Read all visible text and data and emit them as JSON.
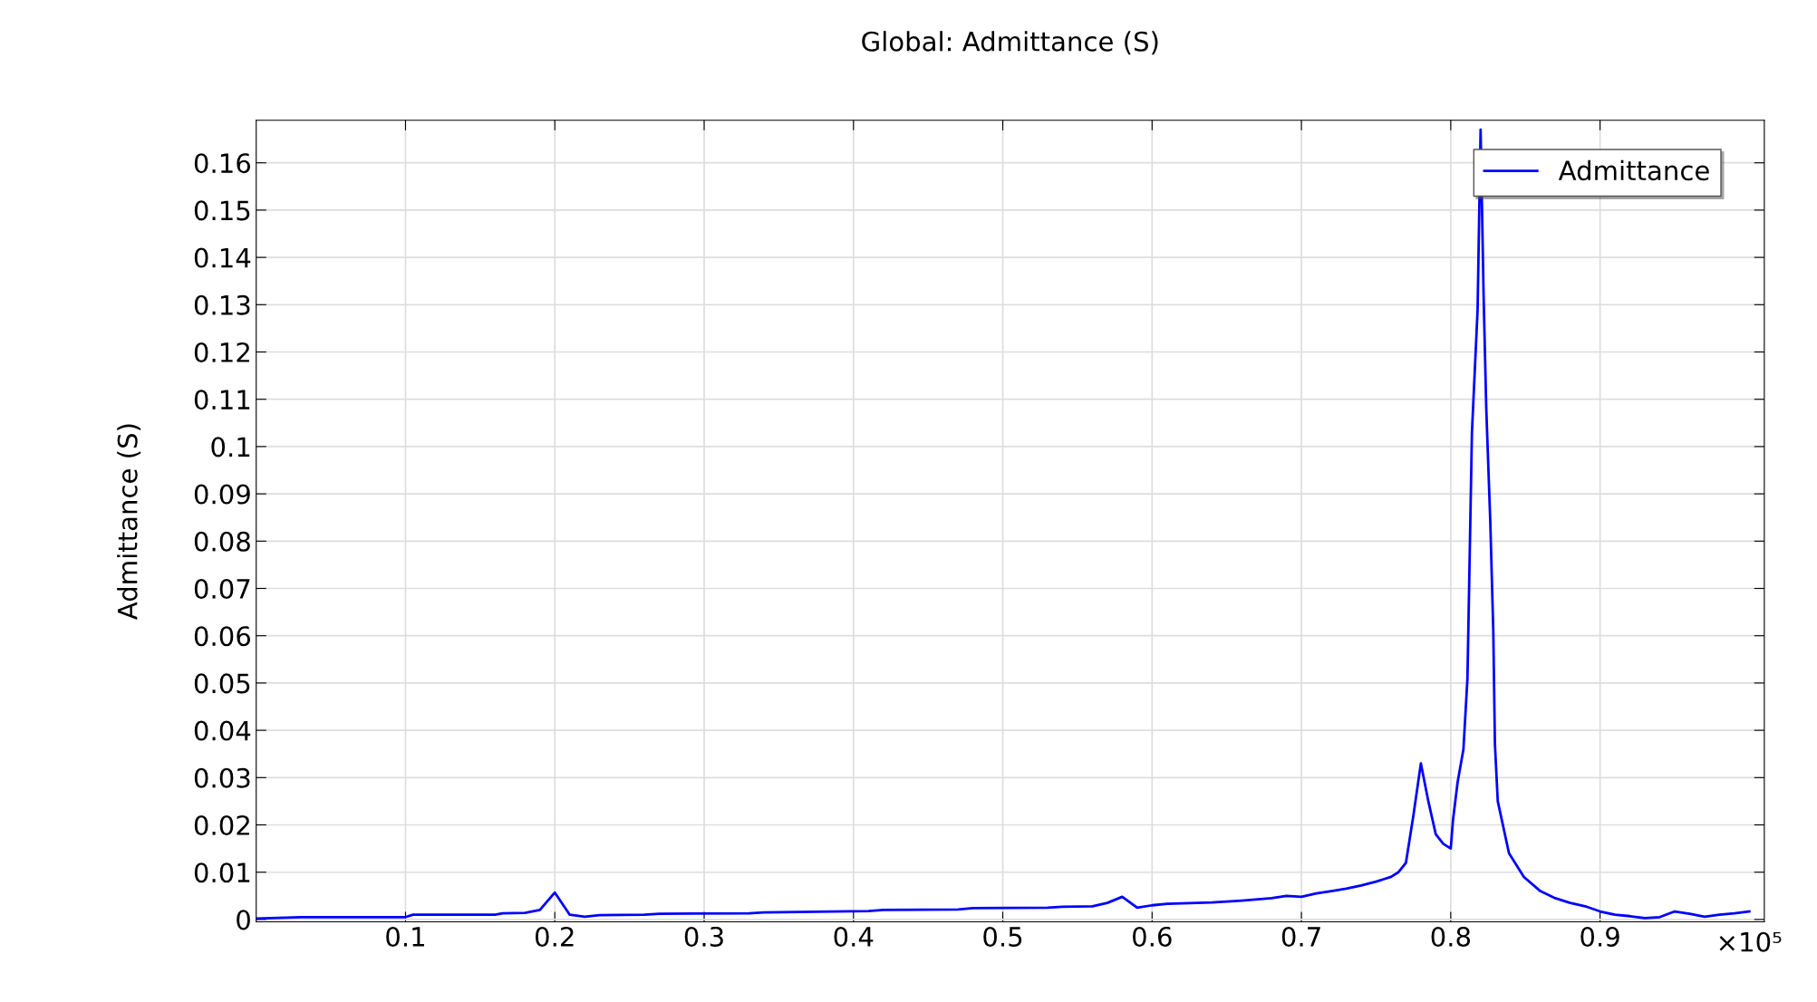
{
  "chart_data": {
    "type": "line",
    "title": "Global: Admittance (S)",
    "ylabel": "Admittance (S)",
    "xlabel": "×10⁵",
    "x": [
      0.0,
      0.03,
      0.1,
      0.105,
      0.16,
      0.165,
      0.18,
      0.19,
      0.2,
      0.21,
      0.22,
      0.23,
      0.26,
      0.27,
      0.33,
      0.34,
      0.41,
      0.42,
      0.47,
      0.48,
      0.53,
      0.54,
      0.56,
      0.57,
      0.58,
      0.59,
      0.6,
      0.61,
      0.64,
      0.66,
      0.68,
      0.69,
      0.7,
      0.71,
      0.72,
      0.73,
      0.74,
      0.75,
      0.76,
      0.765,
      0.77,
      0.775,
      0.78,
      0.785,
      0.79,
      0.795,
      0.8,
      0.8015,
      0.8046,
      0.8085,
      0.8112,
      0.8127,
      0.8142,
      0.818,
      0.82,
      0.822,
      0.8238,
      0.8265,
      0.8285,
      0.8296,
      0.8315,
      0.839,
      0.849,
      0.86,
      0.87,
      0.88,
      0.89,
      0.9,
      0.91,
      0.92,
      0.93,
      0.94,
      0.95,
      0.96,
      0.97,
      0.98,
      0.99,
      1.0
    ],
    "series": [
      {
        "name": "Admittance",
        "color": "#0000ff",
        "values": [
          0.0002,
          0.0005,
          0.0005,
          0.001,
          0.001,
          0.0013,
          0.0014,
          0.002,
          0.0057,
          0.001,
          0.0006,
          0.0009,
          0.001,
          0.0012,
          0.0013,
          0.0015,
          0.0018,
          0.002,
          0.0021,
          0.0024,
          0.0025,
          0.0027,
          0.0028,
          0.0035,
          0.0048,
          0.0025,
          0.003,
          0.0033,
          0.0036,
          0.004,
          0.0045,
          0.005,
          0.0048,
          0.0055,
          0.006,
          0.0065,
          0.0072,
          0.008,
          0.009,
          0.01,
          0.012,
          0.022,
          0.033,
          0.025,
          0.018,
          0.016,
          0.015,
          0.021,
          0.029,
          0.036,
          0.051,
          0.077,
          0.103,
          0.129,
          0.167,
          0.132,
          0.108,
          0.084,
          0.061,
          0.037,
          0.025,
          0.014,
          0.009,
          0.006,
          0.0045,
          0.0035,
          0.0028,
          0.0017,
          0.001,
          0.0007,
          0.0003,
          0.0005,
          0.0017,
          0.0012,
          0.0006,
          0.001,
          0.0013,
          0.0017
        ]
      }
    ],
    "xlim": [
      0,
      1.01
    ],
    "xticks": [
      0.1,
      0.2,
      0.3,
      0.4,
      0.5,
      0.6,
      0.7,
      0.8,
      0.9
    ],
    "ylim": [
      -0.0005,
      0.169
    ],
    "yticks": [
      0,
      0.01,
      0.02,
      0.03,
      0.04,
      0.05,
      0.06,
      0.07,
      0.08,
      0.09,
      0.1,
      0.11,
      0.12,
      0.13,
      0.14,
      0.15,
      0.16
    ],
    "grid": true,
    "legend": "top right",
    "marker": "none",
    "line_style": "solid"
  }
}
